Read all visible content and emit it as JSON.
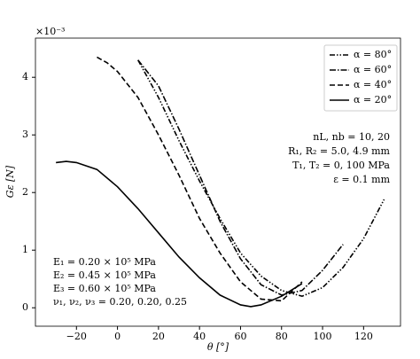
{
  "chart_data": {
    "type": "line",
    "offset_label": "×10⁻³",
    "x_label": "θ [°]",
    "y_label": "Gε [N]",
    "xlim": [
      -40,
      138
    ],
    "ylim": [
      -0.32,
      4.68
    ],
    "xticks": [
      {
        "value": -20,
        "label": "−20"
      },
      0,
      20,
      40,
      60,
      80,
      100,
      120
    ],
    "yticks": [
      0,
      1,
      2,
      3,
      4
    ],
    "legend": "upper right",
    "series": [
      {
        "name": "α = 80°",
        "color": "#000000",
        "dash": "6 2 1.5 2 1.5 2",
        "x": [
          10,
          20,
          30,
          40,
          50,
          60,
          70,
          80,
          90,
          100,
          110,
          120,
          130
        ],
        "values": [
          4.3,
          3.65,
          2.9,
          2.2,
          1.55,
          0.95,
          0.55,
          0.3,
          0.2,
          0.35,
          0.7,
          1.2,
          1.88
        ]
      },
      {
        "name": "α = 60°",
        "color": "#000000",
        "dash": "7 2 1.5 2",
        "x": [
          10,
          20,
          30,
          40,
          50,
          60,
          70,
          80,
          90,
          100,
          110
        ],
        "values": [
          4.3,
          3.85,
          3.1,
          2.3,
          1.5,
          0.85,
          0.4,
          0.22,
          0.3,
          0.65,
          1.1
        ]
      },
      {
        "name": "α = 40°",
        "color": "#000000",
        "dash": "6 3",
        "x": [
          -10,
          -5,
          0,
          10,
          20,
          30,
          40,
          50,
          60,
          70,
          80,
          90
        ],
        "values": [
          4.35,
          4.25,
          4.1,
          3.65,
          3.0,
          2.3,
          1.55,
          0.95,
          0.45,
          0.15,
          0.12,
          0.45
        ]
      },
      {
        "name": "α = 20°",
        "color": "#000000",
        "dash": "none",
        "x": [
          -30,
          -25,
          -20,
          -10,
          0,
          10,
          20,
          30,
          40,
          50,
          60,
          65,
          70,
          80,
          90
        ],
        "values": [
          2.52,
          2.54,
          2.52,
          2.4,
          2.1,
          1.72,
          1.3,
          0.88,
          0.52,
          0.22,
          0.05,
          0.02,
          0.05,
          0.2,
          0.42
        ]
      }
    ],
    "annotations_right": [
      "nL, nb = 10, 20",
      "R₁, R₂ = 5.0, 4.9 mm",
      "T₁, T₂ = 0, 100 MPa",
      "ε = 0.1 mm"
    ],
    "annotations_left": [
      "E₁ = 0.20 × 10⁵ MPa",
      "E₂ = 0.45 × 10⁵ MPa",
      "E₃ = 0.60 × 10⁵ MPa",
      "ν₁, ν₂, ν₃ = 0.20, 0.20, 0.25"
    ]
  }
}
